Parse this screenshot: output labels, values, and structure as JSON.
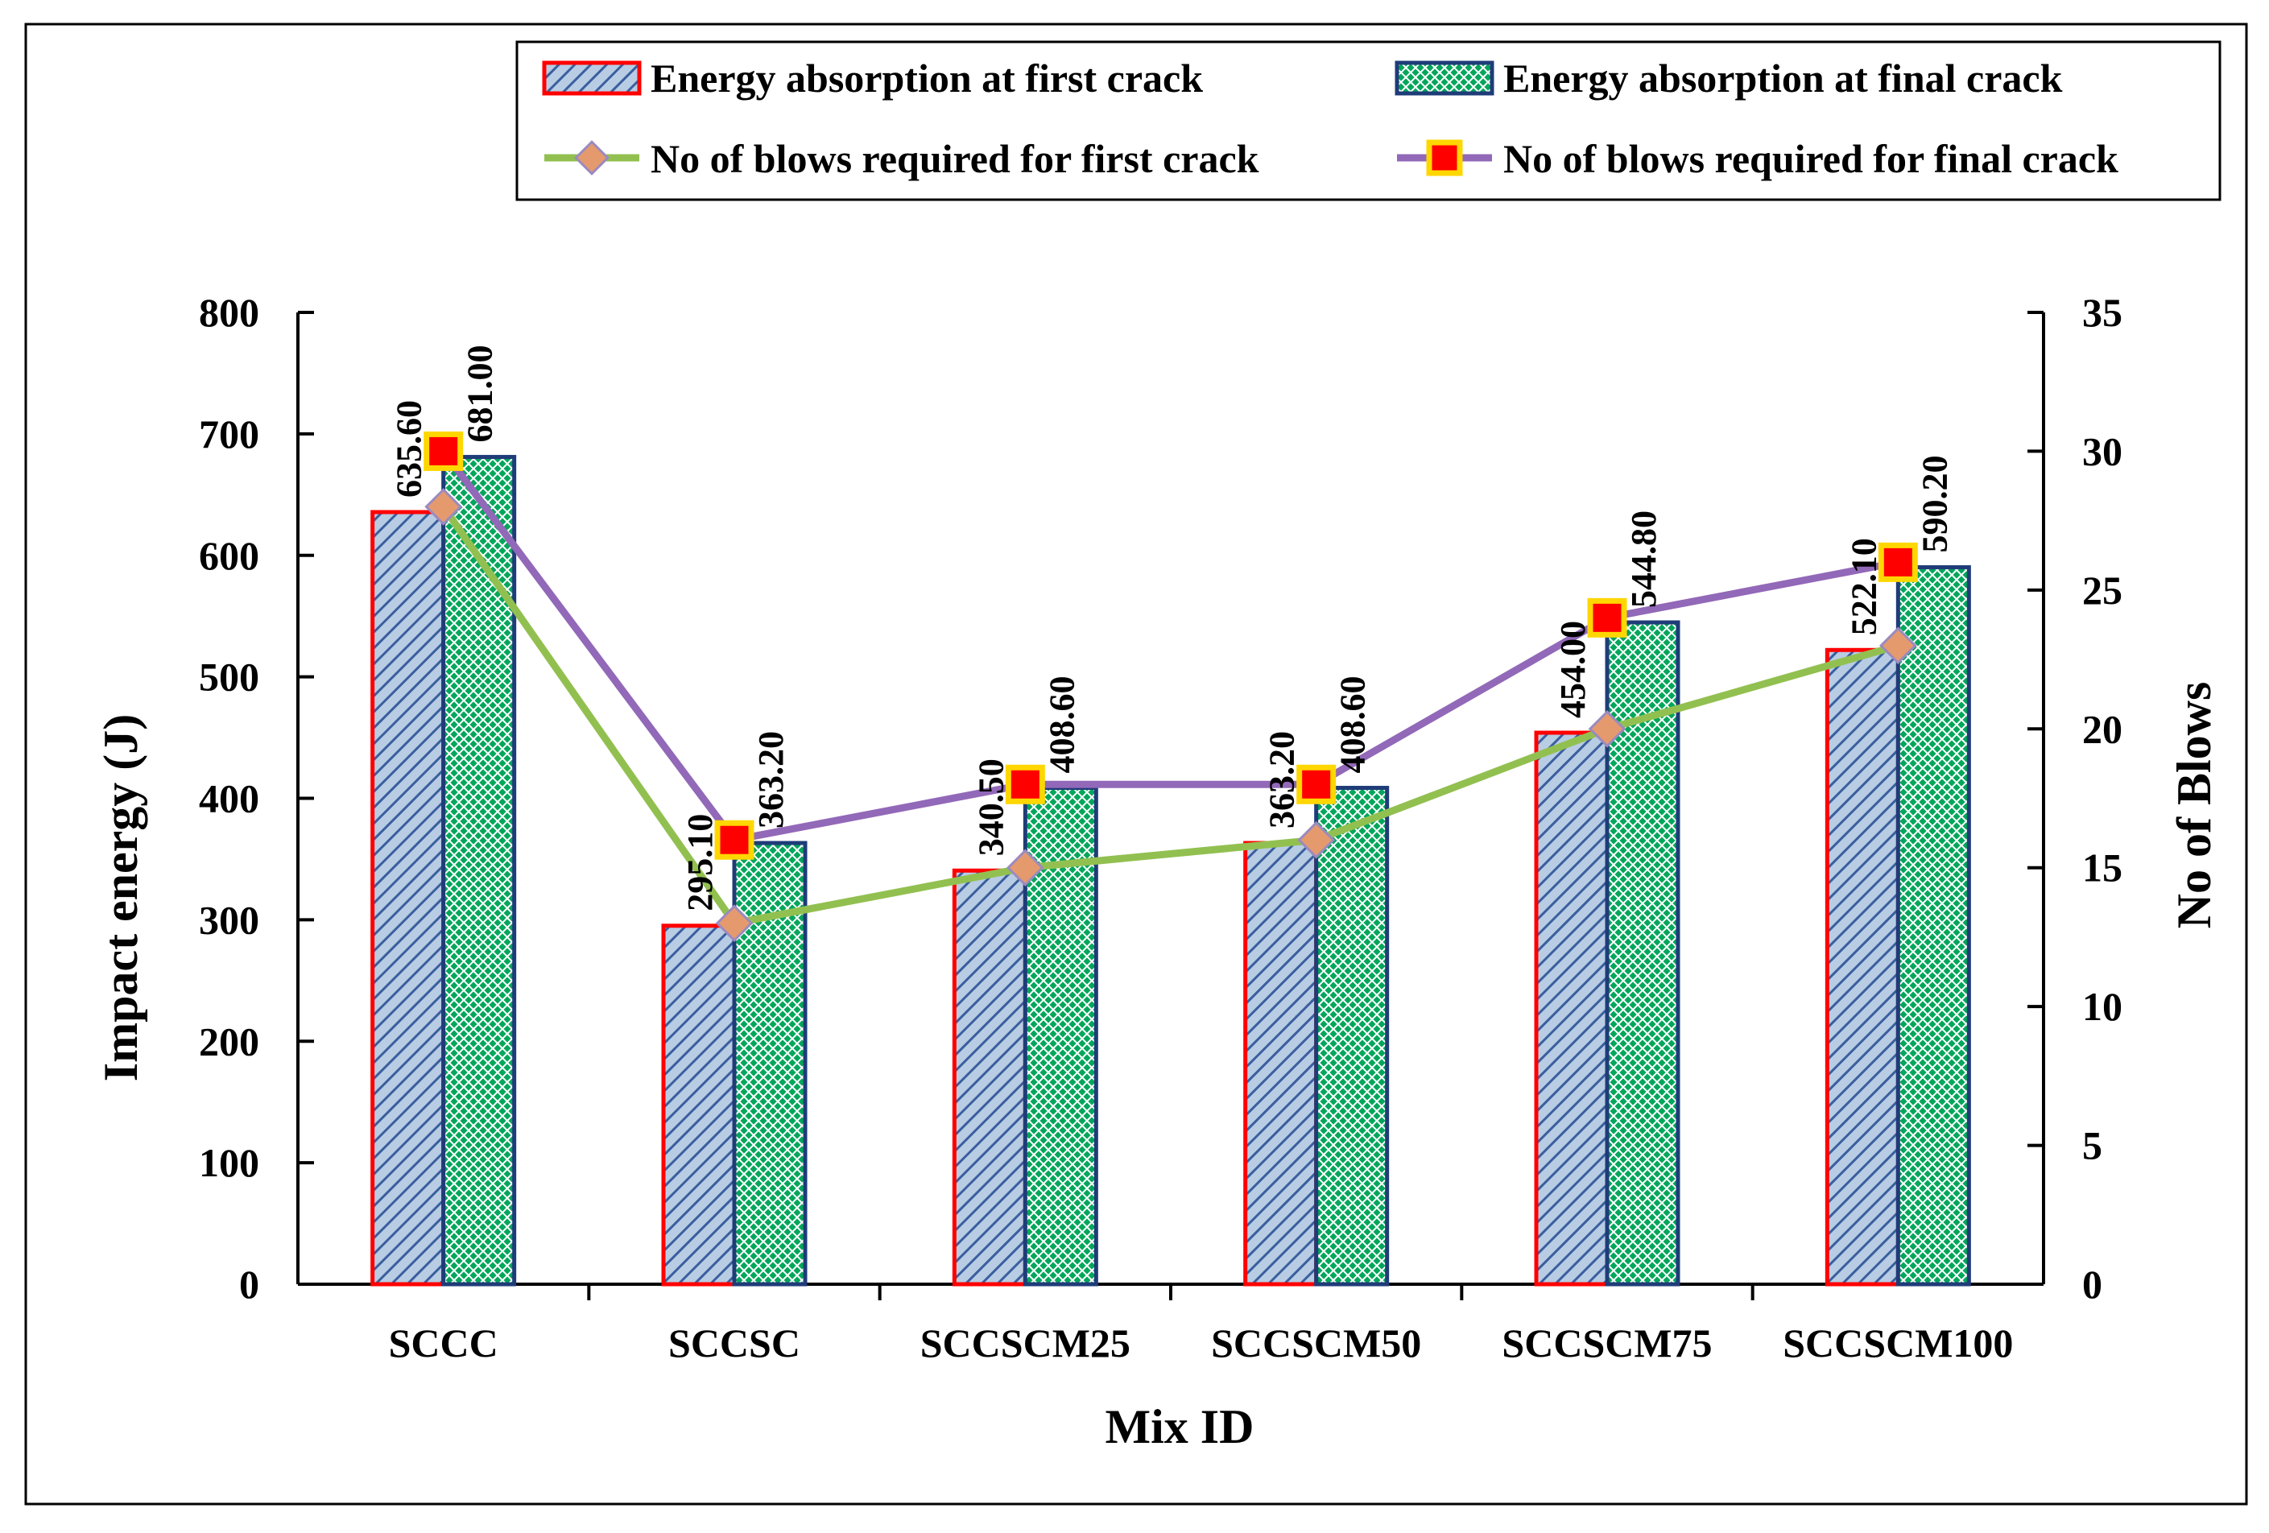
{
  "chart_data": {
    "type": "bar",
    "xlabel": "Mix ID",
    "ylabel": "Impact energy (J)",
    "y2label": "No of Blows",
    "ylim": [
      0,
      800
    ],
    "y2lim": [
      0,
      35
    ],
    "yticks": [
      0,
      100,
      200,
      300,
      400,
      500,
      600,
      700,
      800
    ],
    "y2ticks": [
      0,
      5,
      10,
      15,
      20,
      25,
      30,
      35
    ],
    "categories": [
      "SCCC",
      "SCCSC",
      "SCCSCM25",
      "SCCSCM50",
      "SCCSCM75",
      "SCCSCM100"
    ],
    "bar_series": [
      {
        "name": "Energy absorption at first crack",
        "values": [
          635.6,
          295.1,
          340.5,
          363.2,
          454.0,
          522.1
        ],
        "labels": [
          "635.60",
          "295.10",
          "340.50",
          "363.20",
          "454.00",
          "522.10"
        ],
        "fill": "#b8cce4",
        "hatch": "#3a5f9e",
        "stroke": "#ff0000"
      },
      {
        "name": "Energy absorption at final crack",
        "values": [
          681.0,
          363.2,
          408.6,
          408.6,
          544.8,
          590.2
        ],
        "labels": [
          "681.00",
          "363.20",
          "408.60",
          "408.60",
          "544.80",
          "590.20"
        ],
        "fill": "#00a65a",
        "hatch": "#ffffff",
        "stroke": "#1f3c78"
      }
    ],
    "line_series": [
      {
        "name": "No  of blows required for first crack",
        "axis": "right",
        "values": [
          28,
          13,
          15,
          16,
          20,
          23
        ],
        "color": "#92c050",
        "marker": "diamond",
        "marker_fill": "#e59a6e",
        "marker_stroke": "#9b8abf"
      },
      {
        "name": "No  of blows required for final crack",
        "axis": "right",
        "values": [
          30,
          16,
          18,
          18,
          24,
          26
        ],
        "color": "#9268b8",
        "marker": "square",
        "marker_fill": "#ff0000",
        "marker_stroke": "#ffd700"
      }
    ],
    "legend_position": "top"
  }
}
